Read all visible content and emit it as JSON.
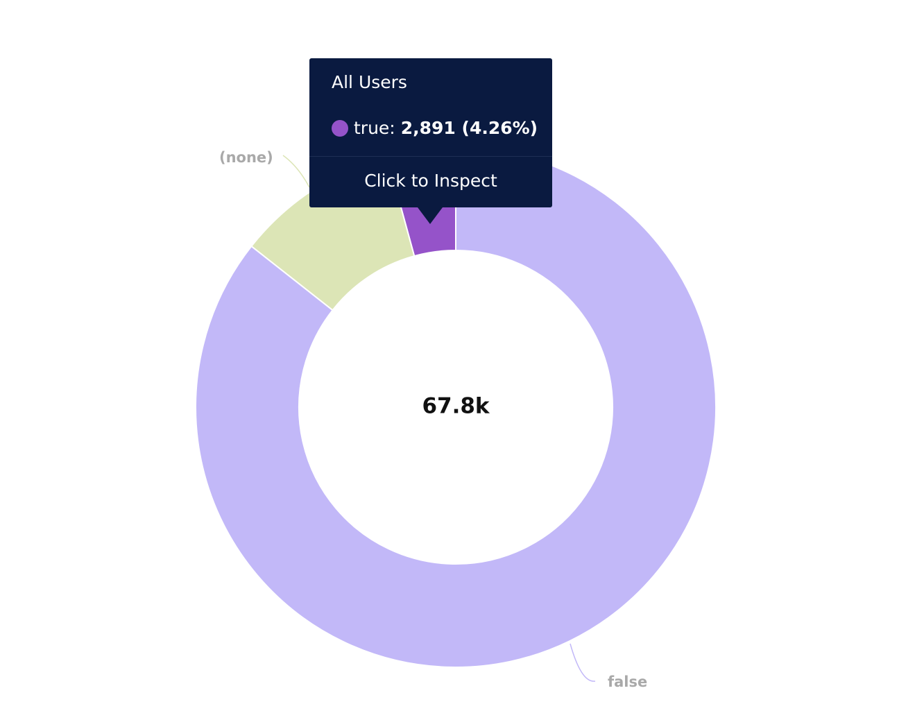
{
  "chart_data": {
    "type": "pie",
    "categories": [
      "false",
      "(none)",
      "true"
    ],
    "values": [
      58100,
      6870,
      2891
    ],
    "colors": [
      "#c2b8f8",
      "#dce5b6",
      "#9553c9"
    ],
    "center_label": "67.8k",
    "tooltip": {
      "title": "All Users",
      "label": "true:",
      "value_label": "2,891 (4.26%)",
      "action": "Click to Inspect"
    }
  }
}
